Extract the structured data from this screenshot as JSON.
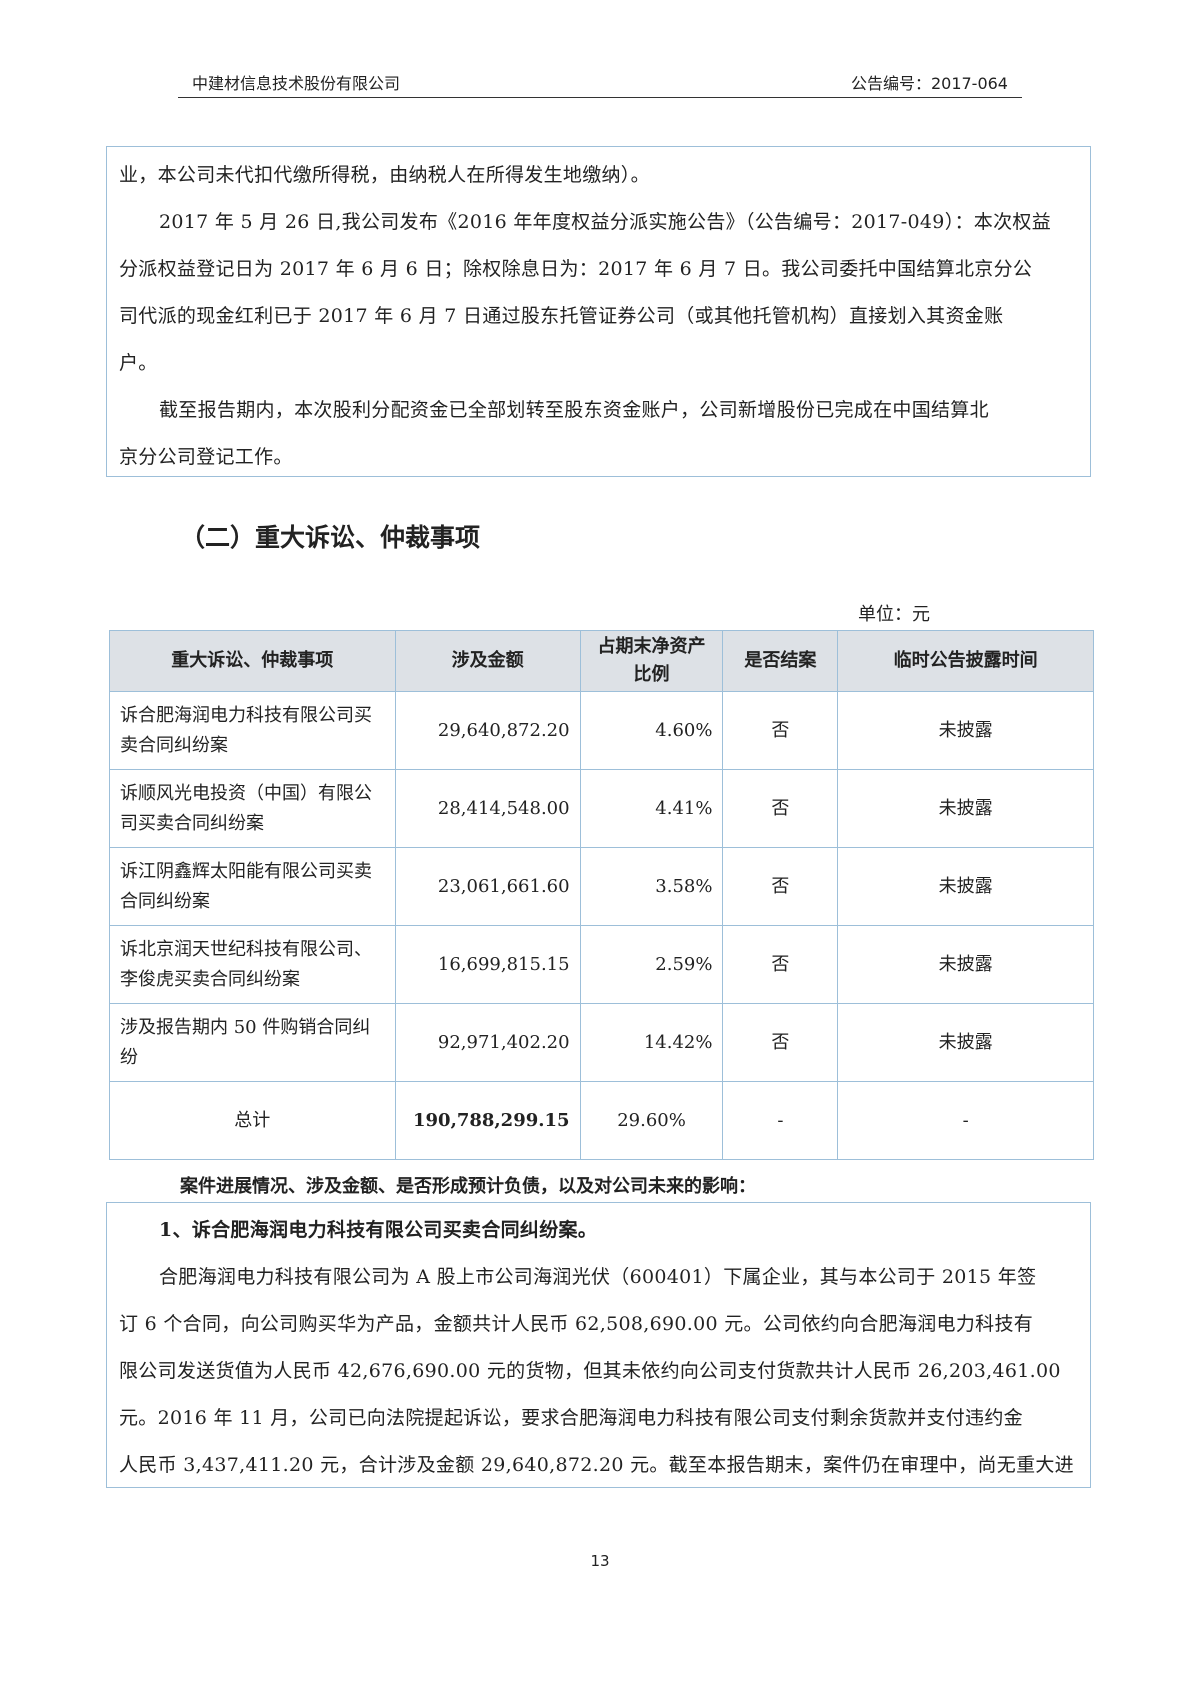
{
  "header": {
    "company": "中建材信息技术股份有限公司",
    "notice_no": "公告编号：2017-064"
  },
  "top_box": {
    "lines": [
      {
        "text": "业，本公司未代扣代缴所得税，由纳税人在所得发生地缴纳）。",
        "indent": false
      },
      {
        "text": "2017 年 5 月 26 日,我公司发布《2016 年年度权益分派实施公告》（公告编号：2017-049）：本次权益",
        "indent": true
      },
      {
        "text": "分派权益登记日为 2017 年 6 月 6 日；除权除息日为：2017 年 6 月 7 日。我公司委托中国结算北京分公",
        "indent": false
      },
      {
        "text": "司代派的现金红利已于 2017 年 6 月 7 日通过股东托管证券公司（或其他托管机构）直接划入其资金账",
        "indent": false
      },
      {
        "text": "户。",
        "indent": false
      },
      {
        "text": "截至报告期内，本次股利分配资金已全部划转至股东资金账户，公司新增股份已完成在中国结算北",
        "indent": true
      },
      {
        "text": "京分公司登记工作。",
        "indent": false
      }
    ]
  },
  "section_title": "（二）重大诉讼、仲裁事项",
  "unit": "单位：元",
  "table": {
    "headers": [
      "重大诉讼、仲裁事项",
      "涉及金额",
      "占期末净资产比例",
      "是否结案",
      "临时公告披露时间"
    ],
    "rows": [
      {
        "item": "诉合肥海润电力科技有限公司买卖合同纠纷案",
        "amount": "29,640,872.20",
        "ratio": "4.60%",
        "closed": "否",
        "disclosure": "未披露"
      },
      {
        "item": "诉顺风光电投资（中国）有限公司买卖合同纠纷案",
        "amount": "28,414,548.00",
        "ratio": "4.41%",
        "closed": "否",
        "disclosure": "未披露"
      },
      {
        "item": "诉江阴鑫辉太阳能有限公司买卖合同纠纷案",
        "amount": "23,061,661.60",
        "ratio": "3.58%",
        "closed": "否",
        "disclosure": "未披露"
      },
      {
        "item": "诉北京润天世纪科技有限公司、李俊虎买卖合同纠纷案",
        "amount": "16,699,815.15",
        "ratio": "2.59%",
        "closed": "否",
        "disclosure": "未披露"
      },
      {
        "item": "涉及报告期内 50 件购销合同纠纷",
        "amount": "92,971,402.20",
        "ratio": "14.42%",
        "closed": "否",
        "disclosure": "未披露"
      }
    ],
    "total": {
      "item": "总计",
      "amount": "190,788,299.15",
      "ratio": "29.60%",
      "closed": "-",
      "disclosure": "-"
    }
  },
  "caption": "案件进展情况、涉及金额、是否形成预计负债，以及对公司未来的影响：",
  "bottom_box": {
    "title": "1、诉合肥海润电力科技有限公司买卖合同纠纷案。",
    "lines": [
      {
        "text": "合肥海润电力科技有限公司为 A 股上市公司海润光伏（600401）下属企业，其与本公司于 2015 年签",
        "indent": true
      },
      {
        "text": "订 6 个合同，向公司购买华为产品，金额共计人民币 62,508,690.00 元。公司依约向合肥海润电力科技有",
        "indent": false
      },
      {
        "text": "限公司发送货值为人民币 42,676,690.00 元的货物，但其未依约向公司支付货款共计人民币 26,203,461.00",
        "indent": false
      },
      {
        "text": "元。2016 年 11 月，公司已向法院提起诉讼，要求合肥海润电力科技有限公司支付剩余货款并支付违约金",
        "indent": false
      },
      {
        "text": "人民币 3,437,411.20 元，合计涉及金额 29,640,872.20 元。截至本报告期末，案件仍在审理中，尚无重大进",
        "indent": false
      }
    ]
  },
  "page_number": "13"
}
